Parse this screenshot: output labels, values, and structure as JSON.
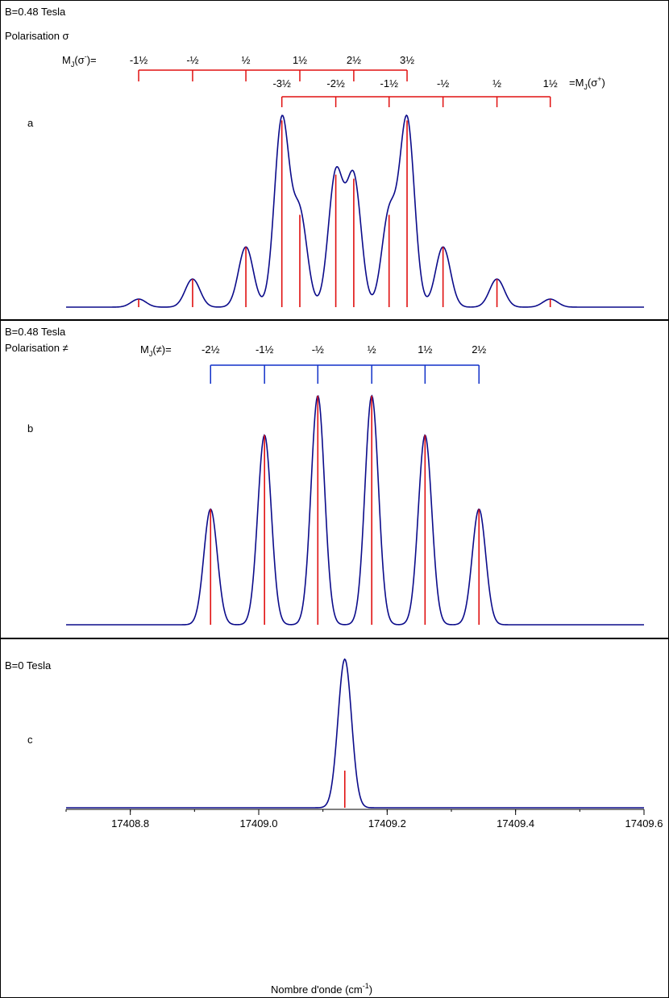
{
  "colors": {
    "spectrum": "#0b0b8a",
    "stick": "#e01010",
    "ladder_sigma": "#e01010",
    "ladder_pi": "#1030c8"
  },
  "chart_data": [
    {
      "type": "line",
      "panel": "a",
      "field_label": "B=0.48 Tesla",
      "polarisation_label": "Polarisation σ",
      "xlim": [
        17408.7,
        17409.6
      ],
      "sigma_minus_label": "MJ(σ⁻)=",
      "sigma_minus_values": [
        "-1½",
        "-½",
        "½",
        "1½",
        "2½",
        "3½"
      ],
      "sigma_minus_positions": [
        17408.813,
        17408.897,
        17408.98,
        17409.064,
        17409.148,
        17409.231
      ],
      "sigma_plus_label": "=MJ(σ⁺)",
      "sigma_plus_values": [
        "-3½",
        "-2½",
        "-1½",
        "-½",
        "½",
        "1½"
      ],
      "sigma_plus_positions": [
        17409.036,
        17409.12,
        17409.203,
        17409.287,
        17409.371,
        17409.454
      ],
      "sticks_x": [
        17408.813,
        17408.897,
        17408.98,
        17409.036,
        17409.064,
        17409.12,
        17409.148,
        17409.203,
        17409.231,
        17409.287,
        17409.371,
        17409.454
      ],
      "sticks_y": [
        0.04,
        0.14,
        0.3,
        0.93,
        0.46,
        0.66,
        0.64,
        0.46,
        0.93,
        0.3,
        0.14,
        0.04
      ],
      "line_width": 0.0115
    },
    {
      "type": "line",
      "panel": "b",
      "field_label": "B=0.48 Tesla",
      "polarisation_label": "Polarisation ≠",
      "xlim": [
        17408.7,
        17409.6
      ],
      "pi_label": "MJ(≠)=",
      "pi_values": [
        "-2½",
        "-1½",
        "-½",
        "½",
        "1½",
        "2½"
      ],
      "pi_positions": [
        17408.925,
        17409.009,
        17409.092,
        17409.176,
        17409.259,
        17409.343
      ],
      "sticks_x": [
        17408.925,
        17409.009,
        17409.092,
        17409.176,
        17409.259,
        17409.343
      ],
      "sticks_y": [
        0.5,
        0.82,
        0.99,
        0.99,
        0.82,
        0.5
      ],
      "line_width": 0.0105
    },
    {
      "type": "line",
      "panel": "c",
      "field_label": "B=0 Tesla",
      "xlim": [
        17408.7,
        17409.6
      ],
      "sticks_x": [
        17409.134
      ],
      "sticks_y": [
        0.24
      ],
      "line_width": 0.0105,
      "peak_height": 0.96,
      "xticks": [
        17408.8,
        17409.0,
        17409.2,
        17409.4,
        17409.6
      ],
      "xtick_labels": [
        "17408.8",
        "17409.0",
        "17409.2",
        "17409.4",
        "17409.6"
      ],
      "xlabel": "Nombre d'onde (cm",
      "xlabel_sup": "-1",
      "xlabel_tail": ")"
    }
  ]
}
